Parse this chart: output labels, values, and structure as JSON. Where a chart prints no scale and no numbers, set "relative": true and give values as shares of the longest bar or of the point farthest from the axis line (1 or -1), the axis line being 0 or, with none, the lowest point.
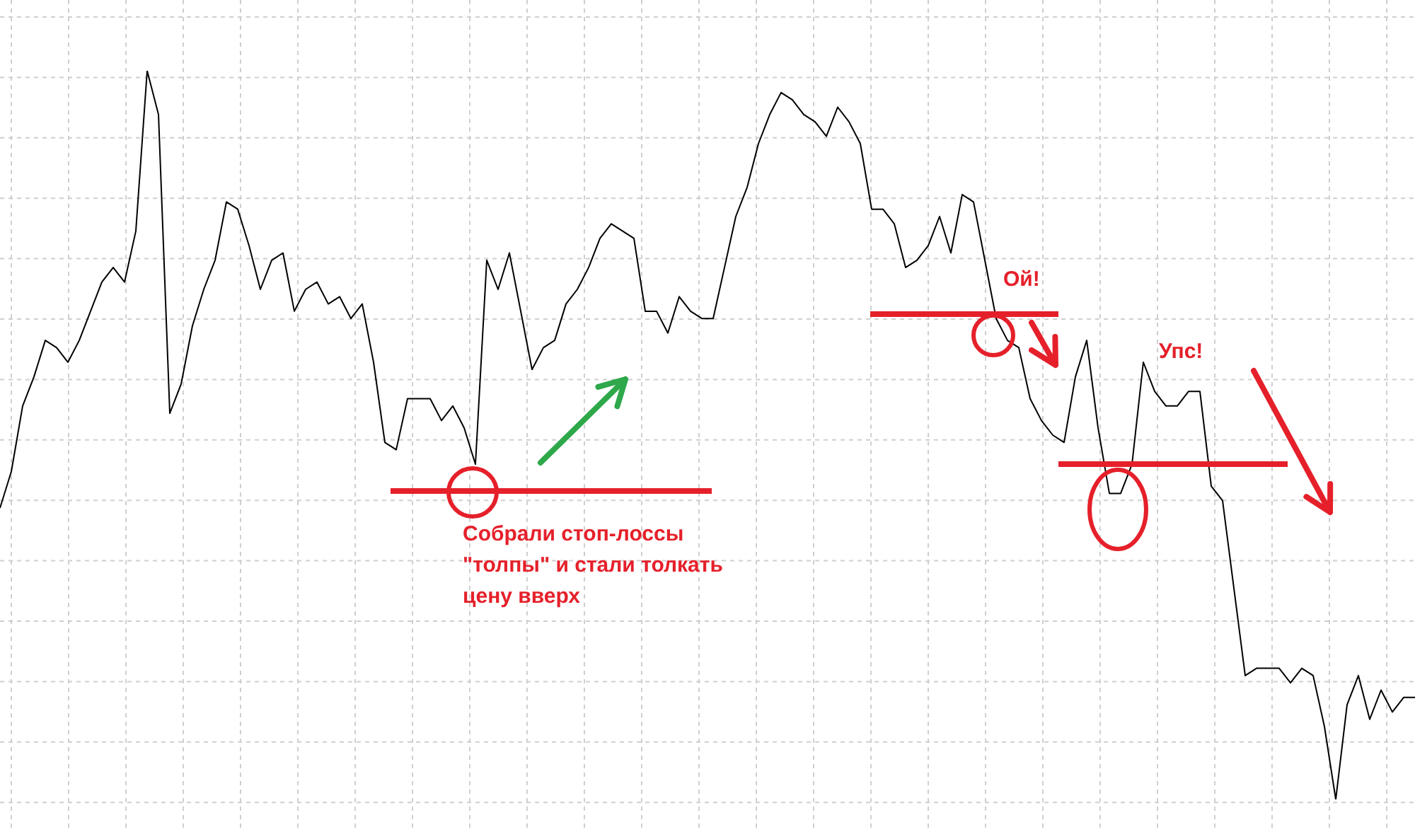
{
  "chart_data": {
    "type": "line",
    "relative": true,
    "grid": true,
    "legend": false,
    "categories": [
      null,
      null,
      null,
      null,
      null,
      null,
      null,
      null,
      null,
      null,
      null,
      null,
      null,
      null,
      null,
      null,
      null,
      null,
      null,
      null,
      null,
      null,
      null,
      null,
      null,
      null,
      null,
      null,
      null,
      null,
      null,
      null,
      null,
      null,
      null,
      null,
      null,
      null,
      null,
      null,
      null,
      null,
      null,
      null,
      null,
      null,
      null,
      null,
      null,
      null,
      null,
      null,
      null,
      null,
      null,
      null,
      null,
      null,
      null,
      null,
      null,
      null,
      null,
      null,
      null,
      null,
      null,
      null,
      null,
      null,
      null,
      null,
      null,
      null,
      null,
      null,
      null,
      null,
      null,
      null,
      null,
      null,
      null,
      null,
      null,
      null,
      null,
      null,
      null,
      null,
      null,
      null,
      null,
      null,
      null,
      null,
      null,
      null,
      null,
      null,
      null,
      null,
      null,
      null,
      null,
      null,
      null,
      null,
      null,
      null,
      null,
      null,
      null,
      null,
      null,
      null,
      null,
      null,
      null,
      null,
      null,
      null,
      null,
      null,
      null,
      null
    ],
    "series": [
      {
        "color": "#000000",
        "values": [
          0.4,
          0.45,
          0.54,
          0.58,
          0.63,
          0.62,
          0.6,
          0.63,
          0.67,
          0.71,
          0.73,
          0.71,
          0.78,
          1.0,
          0.94,
          0.53,
          0.57,
          0.65,
          0.7,
          0.74,
          0.82,
          0.81,
          0.76,
          0.7,
          0.74,
          0.75,
          0.67,
          0.7,
          0.71,
          0.68,
          0.69,
          0.66,
          0.68,
          0.6,
          0.49,
          0.48,
          0.55,
          0.55,
          0.55,
          0.52,
          0.54,
          0.51,
          0.46,
          0.74,
          0.7,
          0.75,
          0.67,
          0.59,
          0.62,
          0.63,
          0.68,
          0.7,
          0.73,
          0.77,
          0.79,
          0.78,
          0.77,
          0.67,
          0.67,
          0.64,
          0.69,
          0.67,
          0.66,
          0.66,
          0.73,
          0.8,
          0.84,
          0.9,
          0.94,
          0.97,
          0.96,
          0.94,
          0.93,
          0.91,
          0.95,
          0.93,
          0.9,
          0.81,
          0.81,
          0.79,
          0.73,
          0.74,
          0.76,
          0.8,
          0.75,
          0.83,
          0.82,
          0.74,
          0.66,
          0.63,
          0.62,
          0.55,
          0.52,
          0.5,
          0.49,
          0.58,
          0.63,
          0.51,
          0.42,
          0.42,
          0.46,
          0.6,
          0.56,
          0.54,
          0.54,
          0.56,
          0.56,
          0.43,
          0.41,
          0.29,
          0.17,
          0.18,
          0.18,
          0.18,
          0.16,
          0.18,
          0.17,
          0.1,
          0,
          0.13,
          0.17,
          0.11,
          0.15,
          0.12,
          0.14,
          0.14
        ]
      }
    ],
    "annotations": [
      "Собрали стоп-лоссы \"толпы\" и стали толкать цену вверх",
      "Ой!",
      "Упс!"
    ]
  }
}
